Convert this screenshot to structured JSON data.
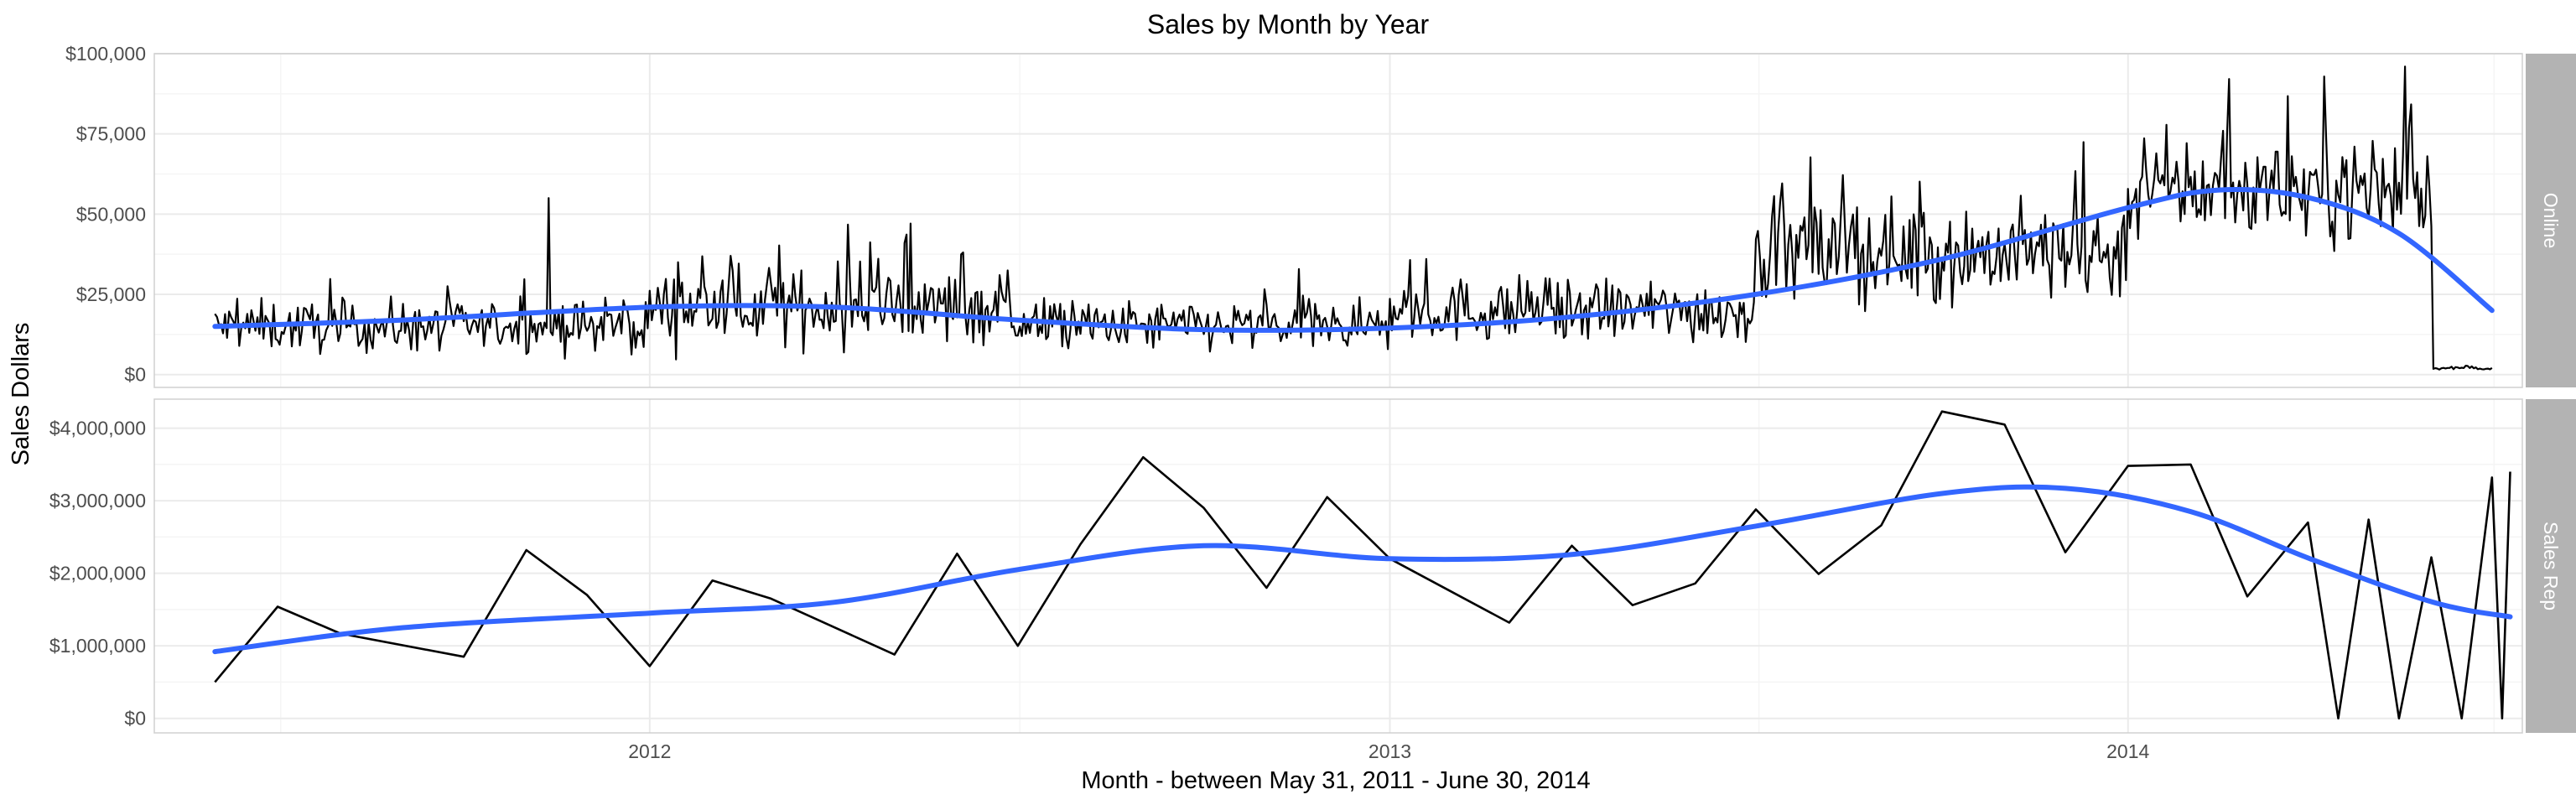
{
  "colors": {
    "raw_line": "#000000",
    "smooth_line": "#3366ff",
    "strip_bg": "#b3b3b3",
    "strip_text": "#ffffff",
    "grid_major": "#ebebeb",
    "grid_minor": "#f5f5f5",
    "panel_border": "#d0d0d0"
  },
  "chart_data": {
    "type": "line",
    "title": "Sales by Month by Year",
    "xlabel": "Month - between May 31, 2011 - June 30, 2014",
    "ylabel": "Sales Dollars",
    "x_axis": {
      "type": "date",
      "range": [
        "2011-05-01",
        "2014-07-15"
      ],
      "ticks": [
        {
          "date": "2012-01-01",
          "label": "2012"
        },
        {
          "date": "2013-01-01",
          "label": "2013"
        },
        {
          "date": "2014-01-01",
          "label": "2014"
        }
      ]
    },
    "grid": true,
    "legend": "none",
    "facets": [
      {
        "label": "Online",
        "ylim": [
          -4000,
          100000
        ],
        "y_ticks": [
          {
            "value": 0,
            "label": "$0"
          },
          {
            "value": 25000,
            "label": "$25,000"
          },
          {
            "value": 50000,
            "label": "$50,000"
          },
          {
            "value": 75000,
            "label": "$75,000"
          },
          {
            "value": 100000,
            "label": "$100,000"
          }
        ],
        "series": [
          {
            "kind": "raw",
            "frequency": "daily",
            "start_date": "2011-05-31",
            "end_date": "2014-06-30",
            "segments": [
              {
                "from": "2011-05-31",
                "to": "2011-12-31",
                "level": 15000,
                "amplitude": 7000
              },
              {
                "from": "2012-01-01",
                "to": "2012-06-30",
                "level": 21000,
                "amplitude": 10000
              },
              {
                "from": "2012-07-01",
                "to": "2012-12-31",
                "level": 15000,
                "amplitude": 7000
              },
              {
                "from": "2013-01-01",
                "to": "2013-06-30",
                "level": 20000,
                "amplitude": 9000
              },
              {
                "from": "2013-07-01",
                "to": "2013-12-31",
                "level": 38000,
                "amplitude": 14000
              },
              {
                "from": "2014-01-01",
                "to": "2014-05-31",
                "level": 58000,
                "amplitude": 14000
              },
              {
                "from": "2014-06-01",
                "to": "2014-06-30",
                "level": 2000,
                "amplitude": 400
              }
            ],
            "peaks": [
              {
                "date": "2011-11-12",
                "value": 55000
              },
              {
                "date": "2014-05-18",
                "value": 96000
              }
            ]
          },
          {
            "kind": "smooth",
            "points": [
              {
                "date": "2011-05-31",
                "value": 15000
              },
              {
                "date": "2011-09-01",
                "value": 17000
              },
              {
                "date": "2012-01-01",
                "value": 21000
              },
              {
                "date": "2012-04-01",
                "value": 21000
              },
              {
                "date": "2012-07-01",
                "value": 17000
              },
              {
                "date": "2012-10-01",
                "value": 14000
              },
              {
                "date": "2013-01-01",
                "value": 14500
              },
              {
                "date": "2013-04-01",
                "value": 18000
              },
              {
                "date": "2013-07-01",
                "value": 25000
              },
              {
                "date": "2013-10-01",
                "value": 36000
              },
              {
                "date": "2014-01-01",
                "value": 52000
              },
              {
                "date": "2014-02-15",
                "value": 57500
              },
              {
                "date": "2014-04-01",
                "value": 55000
              },
              {
                "date": "2014-05-15",
                "value": 44000
              },
              {
                "date": "2014-06-30",
                "value": 20000
              }
            ]
          }
        ]
      },
      {
        "label": "Sales Rep",
        "ylim": [
          -200000,
          4400000
        ],
        "y_ticks": [
          {
            "value": 0,
            "label": "$0"
          },
          {
            "value": 1000000,
            "label": "$1,000,000"
          },
          {
            "value": 2000000,
            "label": "$2,000,000"
          },
          {
            "value": 3000000,
            "label": "$3,000,000"
          },
          {
            "value": 4000000,
            "label": "$4,000,000"
          }
        ],
        "series": [
          {
            "kind": "raw",
            "points": [
              {
                "date": "2011-05-31",
                "value": 500000
              },
              {
                "date": "2011-07-01",
                "value": 1540000
              },
              {
                "date": "2011-08-01",
                "value": 1170000
              },
              {
                "date": "2011-10-01",
                "value": 850000
              },
              {
                "date": "2011-11-01",
                "value": 2320000
              },
              {
                "date": "2011-12-01",
                "value": 1700000
              },
              {
                "date": "2012-01-01",
                "value": 720000
              },
              {
                "date": "2012-02-01",
                "value": 1900000
              },
              {
                "date": "2012-03-01",
                "value": 1650000
              },
              {
                "date": "2012-05-01",
                "value": 880000
              },
              {
                "date": "2012-06-01",
                "value": 2270000
              },
              {
                "date": "2012-07-01",
                "value": 1000000
              },
              {
                "date": "2012-08-01",
                "value": 2400000
              },
              {
                "date": "2012-09-01",
                "value": 3600000
              },
              {
                "date": "2012-10-01",
                "value": 2900000
              },
              {
                "date": "2012-11-01",
                "value": 1800000
              },
              {
                "date": "2012-12-01",
                "value": 3050000
              },
              {
                "date": "2013-01-01",
                "value": 2200000
              },
              {
                "date": "2013-03-01",
                "value": 1320000
              },
              {
                "date": "2013-04-01",
                "value": 2380000
              },
              {
                "date": "2013-05-01",
                "value": 1560000
              },
              {
                "date": "2013-06-01",
                "value": 1860000
              },
              {
                "date": "2013-07-01",
                "value": 2880000
              },
              {
                "date": "2013-08-01",
                "value": 1990000
              },
              {
                "date": "2013-09-01",
                "value": 2660000
              },
              {
                "date": "2013-10-01",
                "value": 4230000
              },
              {
                "date": "2013-11-01",
                "value": 4050000
              },
              {
                "date": "2013-12-01",
                "value": 2290000
              },
              {
                "date": "2014-01-01",
                "value": 3480000
              },
              {
                "date": "2014-02-01",
                "value": 3500000
              },
              {
                "date": "2014-03-01",
                "value": 1680000
              },
              {
                "date": "2014-03-31",
                "value": 2700000
              },
              {
                "date": "2014-04-15",
                "value": 0
              },
              {
                "date": "2014-04-30",
                "value": 2740000
              },
              {
                "date": "2014-05-15",
                "value": 0
              },
              {
                "date": "2014-05-31",
                "value": 2220000
              },
              {
                "date": "2014-06-15",
                "value": 0
              },
              {
                "date": "2014-06-30",
                "value": 3320000
              },
              {
                "date": "2014-07-05",
                "value": 0
              },
              {
                "date": "2014-07-09",
                "value": 3400000
              }
            ]
          },
          {
            "kind": "smooth",
            "points": [
              {
                "date": "2011-05-31",
                "value": 920000
              },
              {
                "date": "2011-09-01",
                "value": 1250000
              },
              {
                "date": "2012-01-01",
                "value": 1450000
              },
              {
                "date": "2012-04-01",
                "value": 1600000
              },
              {
                "date": "2012-07-01",
                "value": 2050000
              },
              {
                "date": "2012-10-01",
                "value": 2380000
              },
              {
                "date": "2013-01-01",
                "value": 2200000
              },
              {
                "date": "2013-04-01",
                "value": 2260000
              },
              {
                "date": "2013-07-01",
                "value": 2650000
              },
              {
                "date": "2013-10-01",
                "value": 3100000
              },
              {
                "date": "2013-12-01",
                "value": 3170000
              },
              {
                "date": "2014-02-01",
                "value": 2850000
              },
              {
                "date": "2014-04-01",
                "value": 2200000
              },
              {
                "date": "2014-06-01",
                "value": 1600000
              },
              {
                "date": "2014-07-09",
                "value": 1400000
              }
            ]
          }
        ]
      }
    ]
  }
}
